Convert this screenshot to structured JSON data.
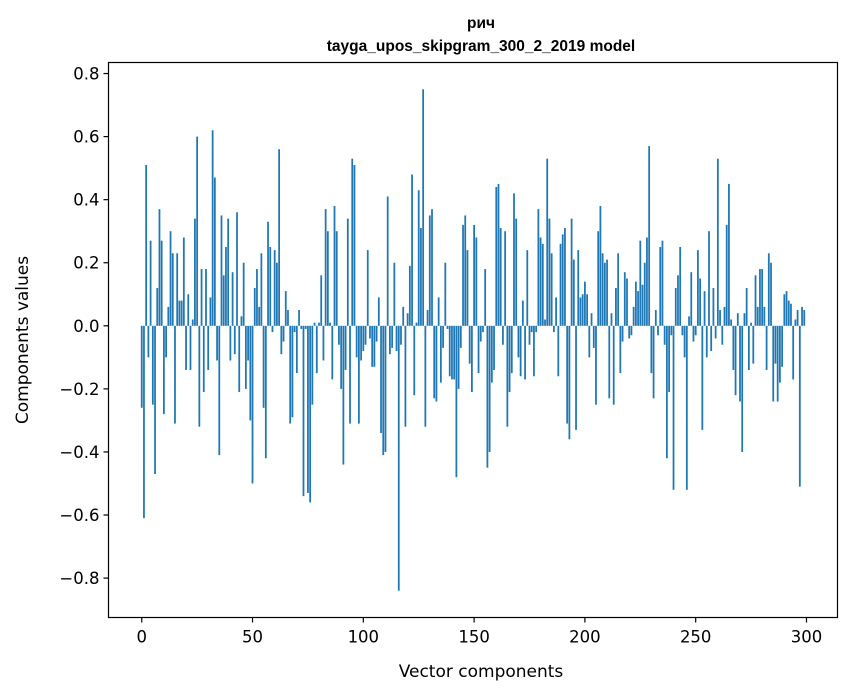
{
  "chart_data": {
    "type": "bar",
    "title_line1": "рич",
    "title_line2": "tayga_upos_skipgram_300_2_2019 model",
    "xlabel": "Vector components",
    "ylabel": "Components values",
    "xlim": [
      -15,
      314
    ],
    "ylim": [
      -0.925,
      0.835
    ],
    "xticks": [
      0,
      50,
      100,
      150,
      200,
      250,
      300
    ],
    "xtick_labels": [
      "0",
      "50",
      "100",
      "150",
      "200",
      "250",
      "300"
    ],
    "yticks": [
      0.8,
      0.6,
      0.4,
      0.2,
      0.0,
      -0.2,
      -0.4,
      -0.6,
      -0.8
    ],
    "ytick_labels": [
      "0.8",
      "0.6",
      "0.4",
      "0.2",
      "0.0",
      "−0.2",
      "−0.4",
      "−0.6",
      "−0.8"
    ],
    "bar_color": "#1f77b4",
    "series": [
      {
        "name": "рич",
        "x_start": 0,
        "values": [
          -0.26,
          -0.61,
          0.51,
          -0.1,
          0.27,
          -0.25,
          -0.47,
          0.12,
          0.37,
          0.27,
          -0.28,
          -0.1,
          0.06,
          0.3,
          0.23,
          -0.31,
          0.23,
          0.08,
          0.08,
          0.28,
          -0.14,
          0.1,
          -0.14,
          0.02,
          0.34,
          0.6,
          -0.32,
          0.18,
          -0.21,
          0.18,
          -0.14,
          0.09,
          0.62,
          0.47,
          -0.11,
          -0.41,
          0.35,
          0.16,
          0.25,
          0.34,
          -0.11,
          0.17,
          -0.09,
          0.36,
          -0.21,
          0.03,
          0.2,
          -0.2,
          -0.11,
          -0.3,
          -0.5,
          0.12,
          0.18,
          0.06,
          0.23,
          -0.26,
          -0.42,
          0.33,
          0.25,
          -0.02,
          0.24,
          0.2,
          0.56,
          -0.09,
          -0.05,
          0.11,
          0.05,
          -0.31,
          -0.29,
          -0.02,
          -0.15,
          0.05,
          -0.01,
          -0.54,
          -0.01,
          -0.53,
          -0.56,
          -0.25,
          0.01,
          -0.15,
          0.01,
          0.16,
          -0.11,
          0.37,
          0.3,
          0.01,
          -0.17,
          0.38,
          0.3,
          -0.06,
          -0.2,
          -0.44,
          -0.14,
          0.34,
          -0.31,
          0.53,
          0.51,
          -0.1,
          -0.31,
          -0.11,
          -0.08,
          -0.06,
          0.24,
          -0.04,
          -0.13,
          -0.13,
          -0.05,
          0.09,
          -0.34,
          -0.41,
          -0.4,
          0.41,
          -0.09,
          -0.07,
          0.2,
          -0.08,
          -0.84,
          -0.06,
          0.06,
          -0.32,
          0.04,
          0.19,
          0.48,
          -0.22,
          0.01,
          0.43,
          0.31,
          0.75,
          -0.32,
          0.05,
          0.35,
          0.37,
          -0.23,
          -0.24,
          0.09,
          -0.18,
          -0.07,
          0.2,
          -0.01,
          -0.16,
          -0.17,
          -0.17,
          -0.48,
          -0.2,
          -0.07,
          0.32,
          0.35,
          0.24,
          -0.12,
          -0.21,
          0.32,
          0.28,
          -0.15,
          -0.05,
          -0.02,
          0.18,
          -0.45,
          -0.4,
          -0.18,
          -0.14,
          0.44,
          0.45,
          0.31,
          -0.06,
          0.3,
          -0.32,
          -0.21,
          -0.15,
          0.42,
          0.34,
          -0.1,
          -0.16,
          0.08,
          -0.17,
          0.24,
          -0.06,
          -0.02,
          -0.16,
          -0.02,
          0.37,
          0.28,
          0.26,
          0.02,
          0.53,
          0.34,
          0.23,
          -0.02,
          0.09,
          -0.16,
          0.26,
          0.29,
          0.31,
          -0.31,
          -0.36,
          0.34,
          0.21,
          -0.33,
          0.24,
          0.09,
          0.1,
          0.14,
          0.1,
          -0.1,
          0.04,
          -0.07,
          -0.25,
          0.3,
          0.38,
          0.23,
          0.2,
          0.21,
          -0.23,
          0.04,
          -0.25,
          0.12,
          0.23,
          -0.15,
          -0.05,
          0.17,
          0.15,
          -0.04,
          -0.03,
          0.06,
          0.14,
          0.11,
          0.27,
          0.13,
          0.2,
          0.28,
          0.57,
          -0.15,
          -0.23,
          0.05,
          -0.03,
          0.25,
          0.27,
          -0.06,
          -0.42,
          -0.21,
          -0.03,
          -0.52,
          0.12,
          0.16,
          0.25,
          -0.03,
          -0.1,
          -0.52,
          0.03,
          0.17,
          -0.05,
          -0.03,
          0.24,
          0.15,
          -0.33,
          0.11,
          -0.1,
          0.3,
          -0.08,
          0.12,
          -0.04,
          0.53,
          0.05,
          -0.06,
          0.06,
          0.32,
          0.45,
          0.02,
          -0.14,
          -0.22,
          0.04,
          -0.24,
          -0.4,
          0.04,
          0.12,
          -0.14,
          0.01,
          -0.12,
          0.16,
          0.06,
          0.18,
          0.18,
          0.06,
          -0.14,
          0.23,
          0.2,
          -0.24,
          -0.12,
          -0.24,
          -0.18,
          -0.13,
          0.1,
          0.11,
          0.08,
          0.07,
          -0.17,
          0.02,
          0.05,
          -0.51,
          0.06,
          0.05
        ]
      }
    ]
  }
}
